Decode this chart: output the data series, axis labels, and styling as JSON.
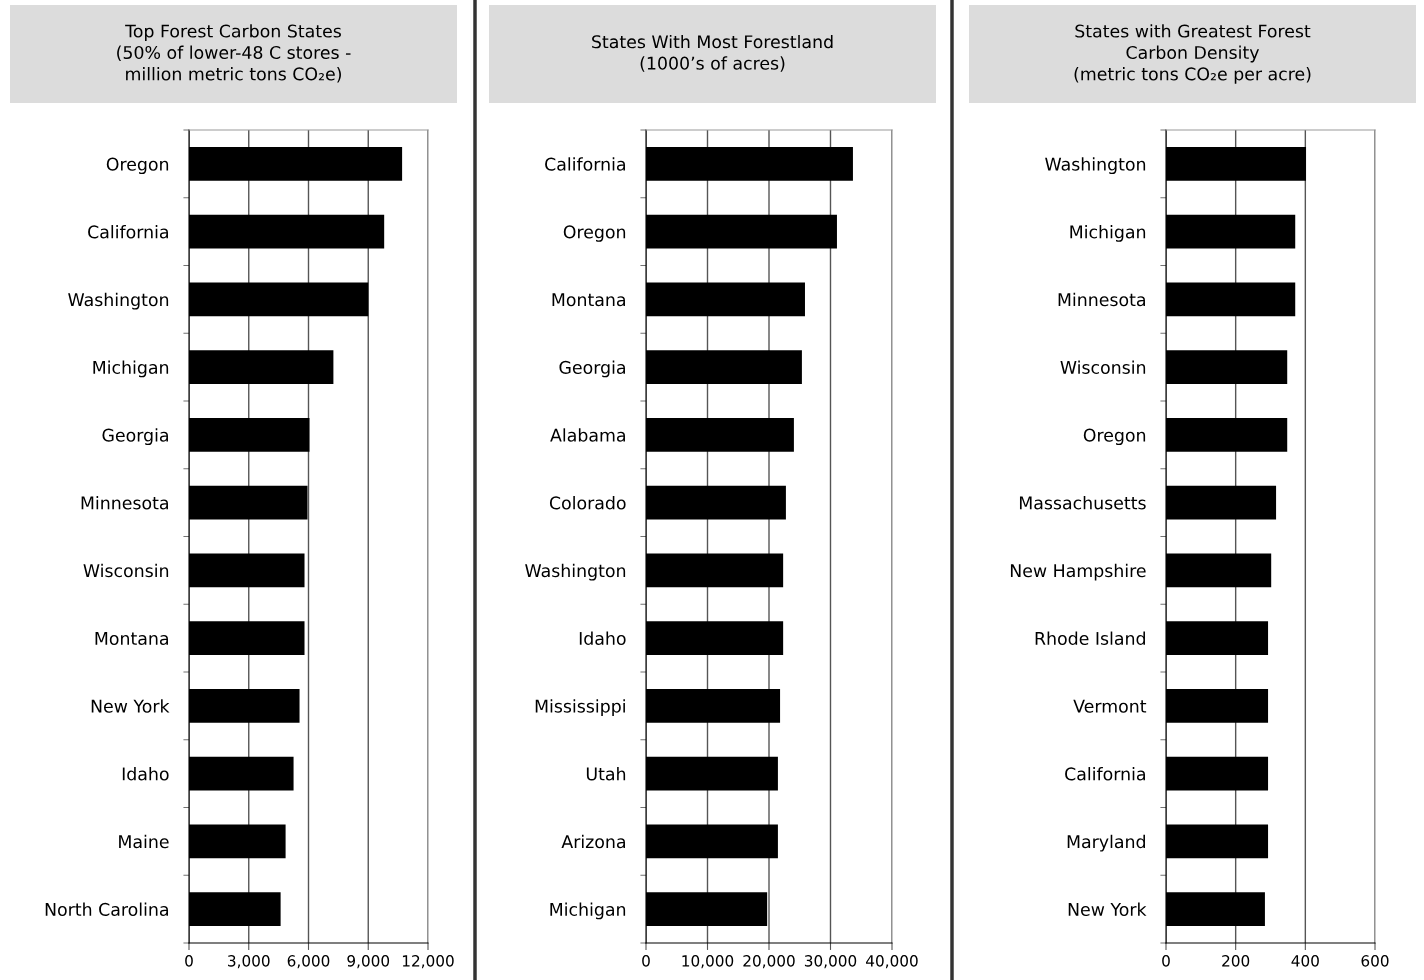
{
  "chart_data": [
    {
      "type": "bar",
      "orientation": "horizontal",
      "title": "Top Forest Carbon States\n(50% of lower-48 C stores -\nmillion metric tons CO₂e)",
      "categories": [
        "Oregon",
        "California",
        "Washington",
        "Michigan",
        "Georgia",
        "Minnesota",
        "Wisconsin",
        "Montana",
        "New York",
        "Idaho",
        "Maine",
        "North Carolina"
      ],
      "values": [
        10700,
        9800,
        9000,
        7250,
        6050,
        5950,
        5800,
        5800,
        5550,
        5250,
        4850,
        4600
      ],
      "color": "#000000",
      "xlim": [
        0,
        12000
      ],
      "xticks": [
        0,
        {
          "value": 3000,
          "label": "3,000"
        },
        {
          "value": 6000,
          "label": "6,000"
        },
        {
          "value": 9000,
          "label": "9,000"
        },
        {
          "value": 12000,
          "label": "12,000"
        }
      ],
      "grid": "x"
    },
    {
      "type": "bar",
      "orientation": "horizontal",
      "title": "States With Most Forestland\n(1000’s of acres)",
      "categories": [
        "California",
        "Oregon",
        "Montana",
        "Georgia",
        "Alabama",
        "Colorado",
        "Washington",
        "Idaho",
        "Mississippi",
        "Utah",
        "Arizona",
        "Michigan"
      ],
      "values": [
        33650,
        31050,
        25850,
        25350,
        24050,
        22750,
        22300,
        22300,
        21800,
        21450,
        21450,
        19700
      ],
      "color": "#000000",
      "xlim": [
        0,
        40000
      ],
      "xticks": [
        0,
        {
          "value": 10000,
          "label": "10,000"
        },
        {
          "value": 20000,
          "label": "20,000"
        },
        {
          "value": 30000,
          "label": "30,000"
        },
        {
          "value": 40000,
          "label": "40,000"
        }
      ],
      "grid": "x"
    },
    {
      "type": "bar",
      "orientation": "horizontal",
      "title": "States with Greatest Forest\nCarbon Density\n(metric tons CO₂e per acre)",
      "categories": [
        "Washington",
        "Michigan",
        "Minnesota",
        "Wisconsin",
        "Oregon",
        "Massachusetts",
        "New Hampshire",
        "Rhode Island",
        "Vermont",
        "California",
        "Maryland",
        "New York"
      ],
      "values": [
        402,
        371,
        371,
        348,
        348,
        316,
        302,
        293,
        293,
        293,
        293,
        284
      ],
      "color": "#000000",
      "xlim": [
        0,
        600
      ],
      "xticks": [
        0,
        200,
        400,
        600
      ],
      "grid": "x"
    }
  ]
}
